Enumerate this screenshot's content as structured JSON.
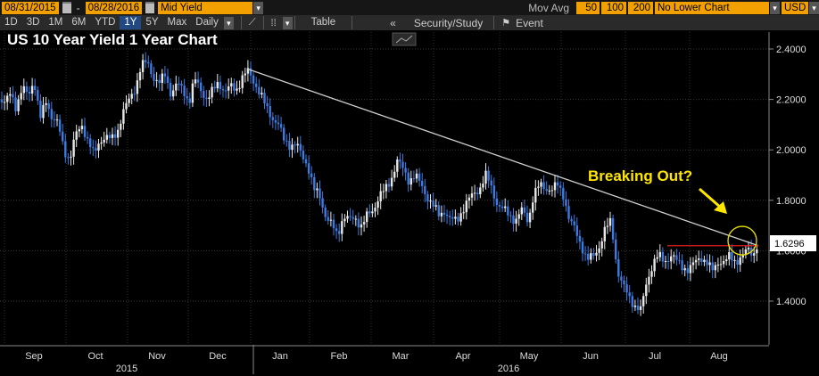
{
  "toolbar": {
    "start_date": "08/31/2015",
    "date_sep": "-",
    "end_date": "08/28/2016",
    "field": "Mid Yield",
    "moving_avg_label": "Mov Avg",
    "mavg_1": "50",
    "mavg_2": "100",
    "mavg_3": "200",
    "lower_chart": "No Lower Chart",
    "currency": "USD",
    "periods": [
      "1D",
      "3D",
      "1M",
      "6M",
      "YTD",
      "1Y",
      "5Y",
      "Max"
    ],
    "active_period": "1Y",
    "frequency": "Daily",
    "table_label": "Table",
    "collapse": "«",
    "security_study": "Security/Study",
    "event": "Event"
  },
  "chart_data": {
    "type": "candlestick",
    "title": "US 10 Year Yield 1 Year Chart",
    "annotation": "Breaking Out?",
    "last_value": "1.6296",
    "y_ticks": [
      "2.4000",
      "2.2000",
      "2.0000",
      "1.8000",
      "1.6000",
      "1.4000"
    ],
    "ylim": [
      1.3,
      2.45
    ],
    "months": [
      "Sep",
      "Oct",
      "Nov",
      "Dec",
      "Jan",
      "Feb",
      "Mar",
      "Apr",
      "May",
      "Jun",
      "Jul",
      "Aug"
    ],
    "years": [
      "2015",
      "2016"
    ],
    "close_path": [
      [
        0,
        2.2
      ],
      [
        6,
        2.18
      ],
      [
        12,
        2.23
      ],
      [
        18,
        2.17
      ],
      [
        25,
        2.24
      ],
      [
        32,
        2.22
      ],
      [
        38,
        2.28
      ],
      [
        45,
        2.12
      ],
      [
        52,
        2.2
      ],
      [
        58,
        2.13
      ],
      [
        65,
        2.1
      ],
      [
        72,
        2.0
      ],
      [
        78,
        1.96
      ],
      [
        85,
        2.06
      ],
      [
        92,
        2.1
      ],
      [
        98,
        2.04
      ],
      [
        105,
        1.98
      ],
      [
        112,
        2.04
      ],
      [
        118,
        2.05
      ],
      [
        125,
        2.04
      ],
      [
        132,
        2.08
      ],
      [
        138,
        2.15
      ],
      [
        145,
        2.2
      ],
      [
        152,
        2.25
      ],
      [
        158,
        2.33
      ],
      [
        165,
        2.35
      ],
      [
        172,
        2.29
      ],
      [
        178,
        2.26
      ],
      [
        185,
        2.3
      ],
      [
        192,
        2.22
      ],
      [
        198,
        2.26
      ],
      [
        205,
        2.24
      ],
      [
        212,
        2.19
      ],
      [
        218,
        2.28
      ],
      [
        225,
        2.24
      ],
      [
        232,
        2.2
      ],
      [
        238,
        2.23
      ],
      [
        245,
        2.27
      ],
      [
        252,
        2.23
      ],
      [
        258,
        2.25
      ],
      [
        265,
        2.24
      ],
      [
        272,
        2.29
      ],
      [
        278,
        2.31
      ],
      [
        285,
        2.27
      ],
      [
        292,
        2.22
      ],
      [
        298,
        2.17
      ],
      [
        305,
        2.13
      ],
      [
        312,
        2.1
      ],
      [
        318,
        2.04
      ],
      [
        325,
        2.02
      ],
      [
        332,
        2.02
      ],
      [
        338,
        1.98
      ],
      [
        345,
        1.94
      ],
      [
        352,
        1.84
      ],
      [
        358,
        1.82
      ],
      [
        365,
        1.74
      ],
      [
        372,
        1.7
      ],
      [
        378,
        1.66
      ],
      [
        385,
        1.74
      ],
      [
        392,
        1.72
      ],
      [
        398,
        1.73
      ],
      [
        405,
        1.7
      ],
      [
        412,
        1.74
      ],
      [
        418,
        1.76
      ],
      [
        425,
        1.82
      ],
      [
        432,
        1.84
      ],
      [
        438,
        1.88
      ],
      [
        445,
        1.96
      ],
      [
        452,
        1.92
      ],
      [
        458,
        1.88
      ],
      [
        465,
        1.9
      ],
      [
        472,
        1.86
      ],
      [
        478,
        1.82
      ],
      [
        485,
        1.78
      ],
      [
        492,
        1.74
      ],
      [
        498,
        1.76
      ],
      [
        505,
        1.72
      ],
      [
        512,
        1.72
      ],
      [
        518,
        1.76
      ],
      [
        525,
        1.8
      ],
      [
        532,
        1.83
      ],
      [
        538,
        1.85
      ],
      [
        545,
        1.9
      ],
      [
        552,
        1.84
      ],
      [
        558,
        1.78
      ],
      [
        565,
        1.76
      ],
      [
        572,
        1.74
      ],
      [
        578,
        1.72
      ],
      [
        585,
        1.76
      ],
      [
        592,
        1.72
      ],
      [
        598,
        1.82
      ],
      [
        605,
        1.86
      ],
      [
        612,
        1.85
      ],
      [
        618,
        1.84
      ],
      [
        625,
        1.86
      ],
      [
        632,
        1.82
      ],
      [
        638,
        1.72
      ],
      [
        645,
        1.68
      ],
      [
        652,
        1.62
      ],
      [
        658,
        1.56
      ],
      [
        665,
        1.58
      ],
      [
        672,
        1.62
      ],
      [
        678,
        1.68
      ],
      [
        685,
        1.72
      ],
      [
        692,
        1.52
      ],
      [
        698,
        1.46
      ],
      [
        705,
        1.42
      ],
      [
        712,
        1.38
      ],
      [
        718,
        1.36
      ],
      [
        725,
        1.48
      ],
      [
        732,
        1.55
      ],
      [
        738,
        1.58
      ],
      [
        745,
        1.56
      ],
      [
        752,
        1.58
      ],
      [
        758,
        1.56
      ],
      [
        765,
        1.54
      ],
      [
        772,
        1.52
      ],
      [
        778,
        1.55
      ],
      [
        785,
        1.58
      ],
      [
        792,
        1.55
      ],
      [
        798,
        1.52
      ],
      [
        805,
        1.56
      ],
      [
        812,
        1.55
      ],
      [
        818,
        1.58
      ],
      [
        825,
        1.56
      ],
      [
        832,
        1.57
      ],
      [
        838,
        1.61
      ],
      [
        845,
        1.59
      ],
      [
        850,
        1.63
      ]
    ],
    "trendline": [
      [
        278,
        2.32
      ],
      [
        850,
        1.62
      ]
    ],
    "resistance": [
      [
        748,
        1.62
      ],
      [
        850,
        1.62
      ]
    ]
  }
}
